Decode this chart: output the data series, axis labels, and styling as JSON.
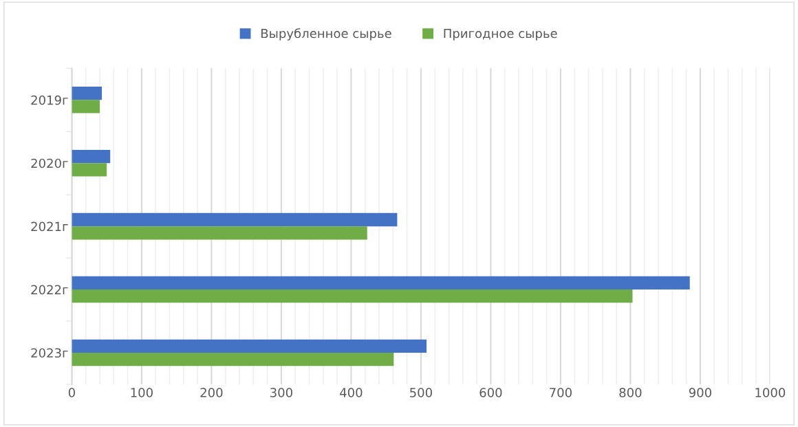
{
  "chart_data": {
    "type": "bar",
    "orientation": "horizontal",
    "categories": [
      "2019г",
      "2020г",
      "2021г",
      "2022г",
      "2023г"
    ],
    "series": [
      {
        "name": "Вырубленное сырье",
        "color": "#4472c4",
        "values": [
          43,
          55,
          466,
          885,
          508
        ]
      },
      {
        "name": "Пригодное сырье",
        "color": "#70ad47",
        "values": [
          40,
          50,
          423,
          803,
          461
        ]
      }
    ],
    "xlim": [
      0,
      1000
    ],
    "xticks": [
      0,
      100,
      200,
      300,
      400,
      500,
      600,
      700,
      800,
      900,
      1000
    ],
    "grid": "x",
    "legend": "top"
  }
}
